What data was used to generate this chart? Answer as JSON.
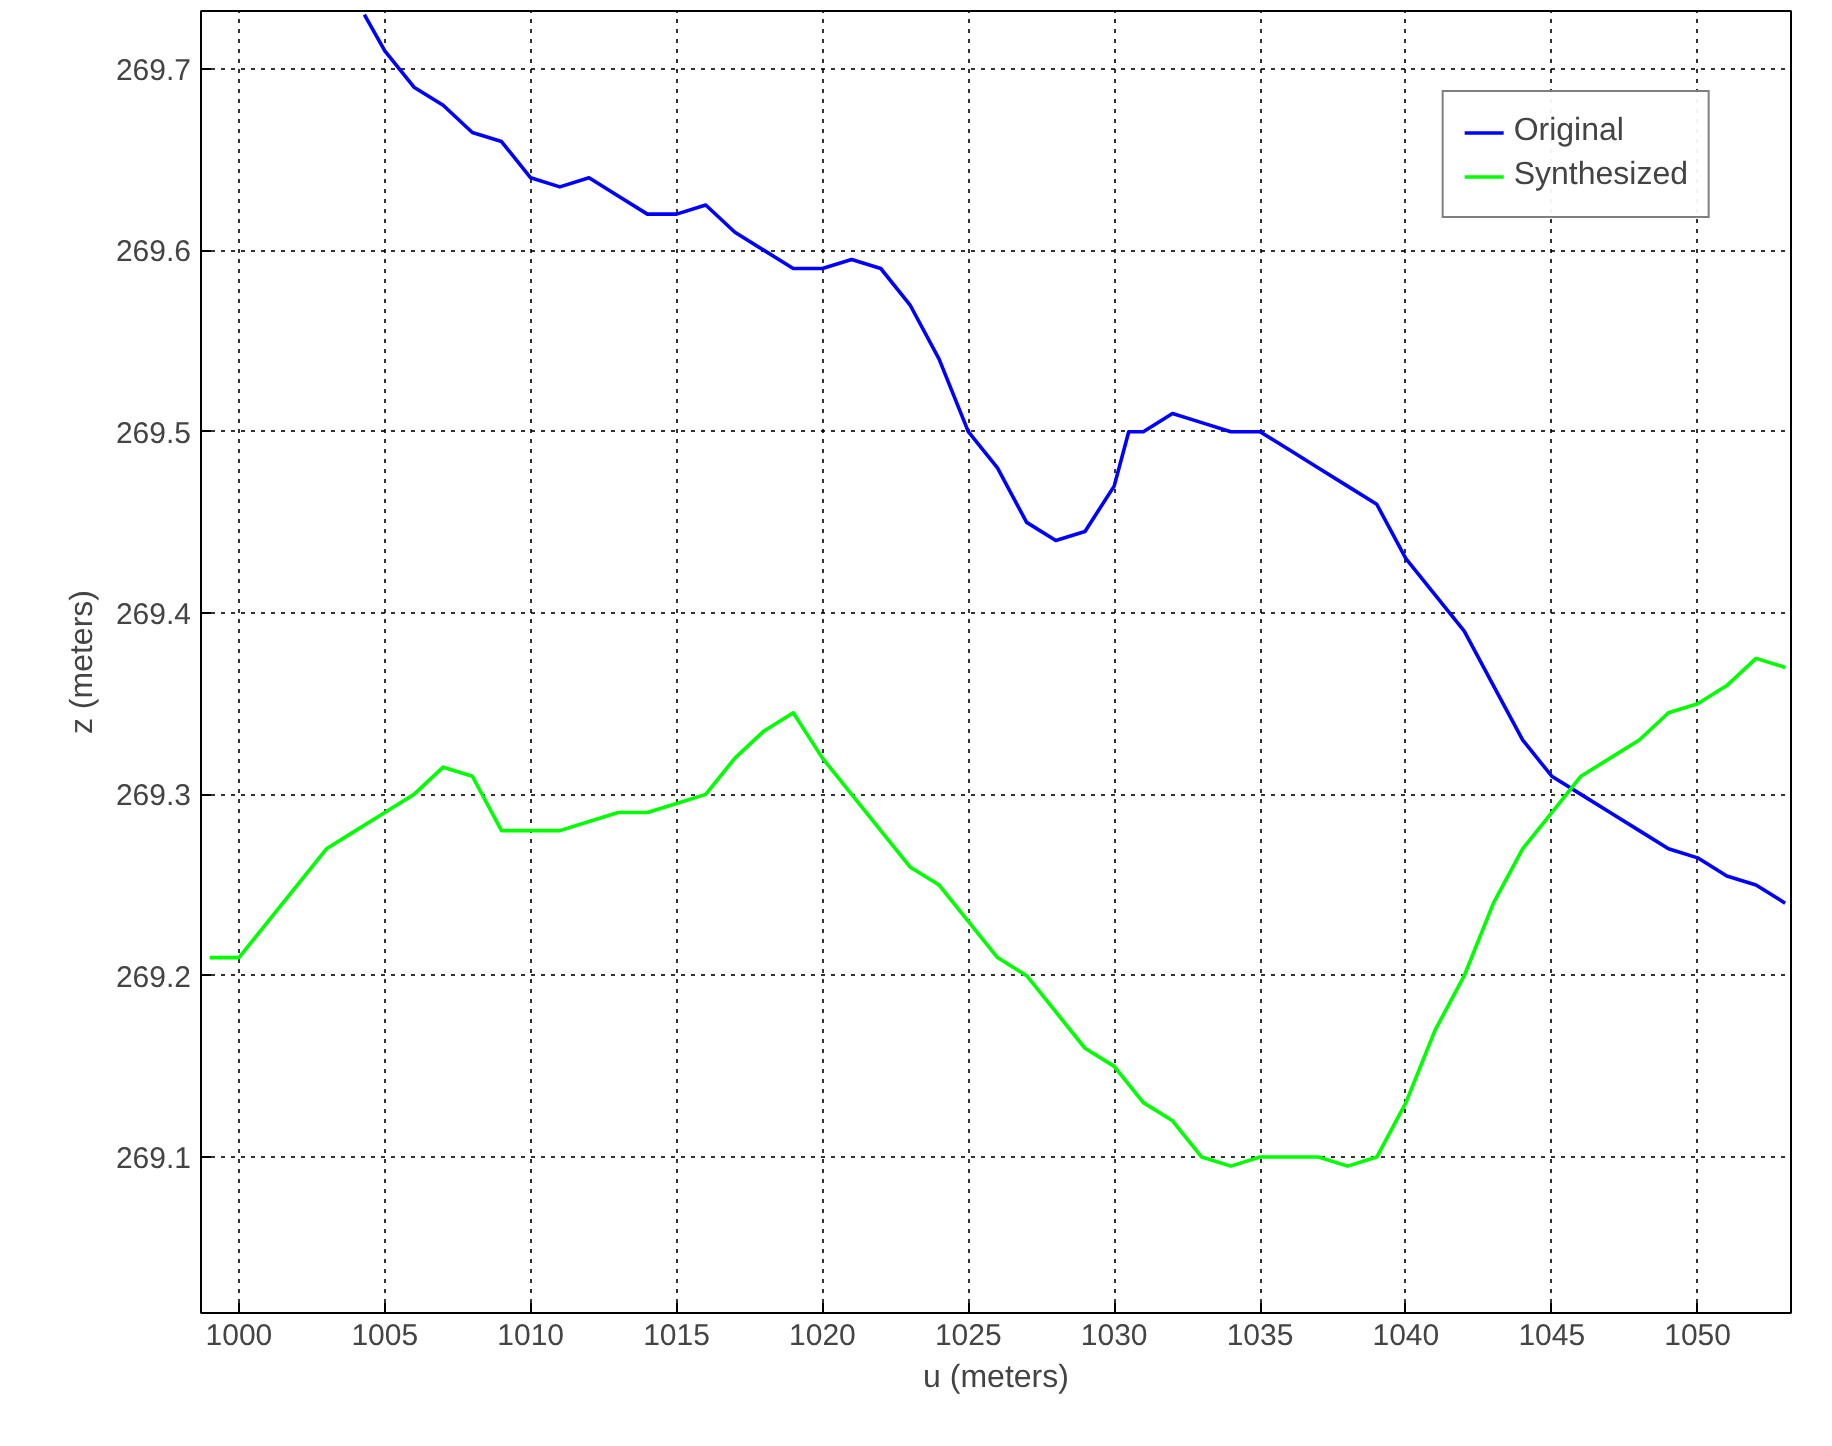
{
  "chart_data": {
    "type": "line",
    "xlabel": "u (meters)",
    "ylabel": "z (meters)",
    "xlim": [
      998.7,
      1053.2
    ],
    "ylim": [
      269.014,
      269.732
    ],
    "xticks": [
      1000,
      1005,
      1010,
      1015,
      1020,
      1025,
      1030,
      1035,
      1040,
      1045,
      1050
    ],
    "yticks": [
      269.1,
      269.2,
      269.3,
      269.4,
      269.5,
      269.6,
      269.7
    ],
    "grid": true,
    "legend": "top right",
    "line_style": "solid",
    "series": [
      {
        "name": "Original",
        "color": "#0000ff",
        "x": [
          1004.3,
          1005,
          1006,
          1007,
          1008,
          1009,
          1010,
          1011,
          1012,
          1013,
          1014,
          1015,
          1016,
          1017,
          1018,
          1019,
          1020,
          1021,
          1022,
          1023,
          1024,
          1025,
          1026,
          1027,
          1028,
          1029,
          1030,
          1030.5,
          1031,
          1032,
          1033,
          1034,
          1035,
          1036,
          1037,
          1038,
          1039,
          1040,
          1041,
          1042,
          1043,
          1044,
          1045,
          1046,
          1047,
          1048,
          1049,
          1050,
          1051,
          1052,
          1053
        ],
        "values": [
          269.73,
          269.71,
          269.69,
          269.68,
          269.665,
          269.66,
          269.64,
          269.635,
          269.64,
          269.63,
          269.62,
          269.62,
          269.625,
          269.61,
          269.6,
          269.59,
          269.59,
          269.595,
          269.59,
          269.57,
          269.54,
          269.5,
          269.48,
          269.45,
          269.44,
          269.445,
          269.47,
          269.5,
          269.5,
          269.51,
          269.505,
          269.5,
          269.5,
          269.49,
          269.48,
          269.47,
          269.46,
          269.43,
          269.41,
          269.39,
          269.36,
          269.33,
          269.31,
          269.3,
          269.29,
          269.28,
          269.27,
          269.265,
          269.255,
          269.25,
          269.24
        ]
      },
      {
        "name": "Synthesized",
        "color": "#00ff00",
        "x": [
          999,
          1000,
          1001,
          1002,
          1003,
          1004,
          1005,
          1006,
          1007,
          1008,
          1009,
          1010,
          1011,
          1012,
          1013,
          1014,
          1015,
          1016,
          1017,
          1018,
          1019,
          1020,
          1021,
          1022,
          1023,
          1024,
          1025,
          1026,
          1027,
          1028,
          1029,
          1030,
          1031,
          1032,
          1033,
          1034,
          1035,
          1036,
          1037,
          1038,
          1039,
          1040,
          1041,
          1042,
          1043,
          1044,
          1045,
          1046,
          1047,
          1048,
          1049,
          1050,
          1051,
          1052,
          1053
        ],
        "values": [
          269.21,
          269.21,
          269.23,
          269.25,
          269.27,
          269.28,
          269.29,
          269.3,
          269.315,
          269.31,
          269.28,
          269.28,
          269.28,
          269.285,
          269.29,
          269.29,
          269.295,
          269.3,
          269.32,
          269.335,
          269.345,
          269.32,
          269.3,
          269.28,
          269.26,
          269.25,
          269.23,
          269.21,
          269.2,
          269.18,
          269.16,
          269.15,
          269.13,
          269.12,
          269.1,
          269.095,
          269.1,
          269.1,
          269.1,
          269.095,
          269.1,
          269.13,
          269.17,
          269.2,
          269.24,
          269.27,
          269.29,
          269.31,
          269.32,
          269.33,
          269.345,
          269.35,
          269.36,
          269.375,
          269.37
        ]
      }
    ]
  }
}
